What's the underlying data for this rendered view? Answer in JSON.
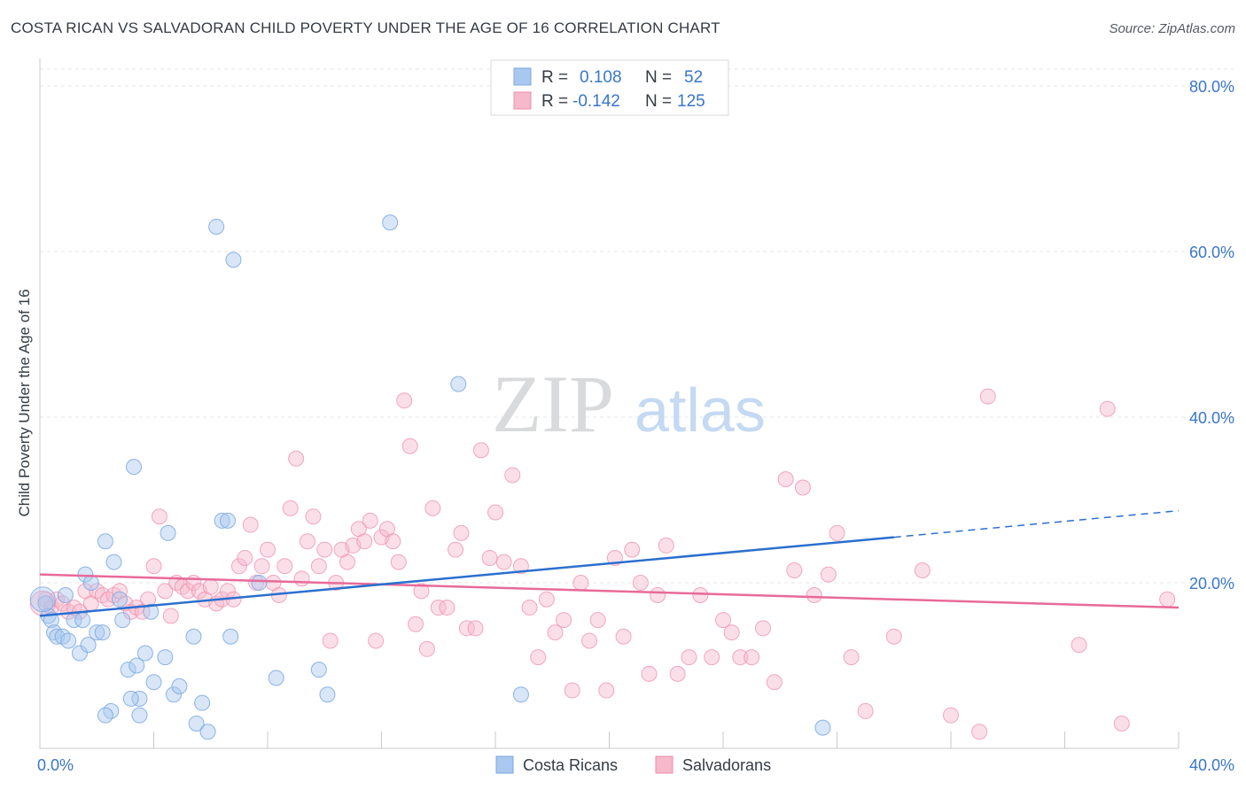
{
  "header": {
    "title": "COSTA RICAN VS SALVADORAN CHILD POVERTY UNDER THE AGE OF 16 CORRELATION CHART",
    "source": "Source: ZipAtlas.com"
  },
  "watermark": {
    "part1": "ZIP",
    "part2": "atlas"
  },
  "legend": {
    "rows": [
      {
        "r_label": "R =",
        "r_value": "0.108",
        "n_label": "N =",
        "n_value": "52",
        "color": "#a9c8f0"
      },
      {
        "r_label": "R =",
        "r_value": "-0.142",
        "n_label": "N =",
        "n_value": "125",
        "color": "#f6b8cb"
      }
    ]
  },
  "bottom_legend": [
    {
      "label": "Costa Ricans",
      "color": "#a9c8f0"
    },
    {
      "label": "Salvadorans",
      "color": "#f6b8cb"
    }
  ],
  "colors": {
    "blue_fill": "#a9c8f0",
    "blue_stroke": "#7aa8e0",
    "blue_line": "#2b6fcf",
    "pink_fill": "#f6b8cb",
    "pink_stroke": "#ee8eab",
    "pink_line": "#e86a99",
    "grid": "#e2e4e8",
    "axis_text": "#3a76c9"
  },
  "chart_data": {
    "type": "scatter",
    "title": "COSTA RICAN VS SALVADORAN CHILD POVERTY UNDER THE AGE OF 16 CORRELATION CHART",
    "xlabel": "",
    "ylabel": "Child Poverty Under the Age of 16",
    "xlim": [
      0,
      40
    ],
    "ylim": [
      0,
      80
    ],
    "x_tick_labels": [
      "0.0%",
      "40.0%"
    ],
    "y_tick_labels": [
      "20.0%",
      "40.0%",
      "60.0%",
      "80.0%"
    ],
    "y_ticks": [
      20,
      40,
      60,
      80
    ],
    "grid": true,
    "legend_position": "top-center",
    "series": [
      {
        "name": "Costa Ricans",
        "R": 0.108,
        "N": 52,
        "trend": {
          "x0": 0,
          "y0": 16.0,
          "x1": 30,
          "y1": 25.5,
          "dashed_to_x": 40,
          "dashed_to_y": 28.7
        },
        "points": [
          [
            0.2,
            17.5
          ],
          [
            0.3,
            16
          ],
          [
            0.4,
            15.5
          ],
          [
            0.5,
            14
          ],
          [
            0.6,
            13.5
          ],
          [
            0.8,
            13.5
          ],
          [
            0.9,
            18.5
          ],
          [
            1.0,
            13
          ],
          [
            1.2,
            15.5
          ],
          [
            1.4,
            11.5
          ],
          [
            1.5,
            15.5
          ],
          [
            1.6,
            21
          ],
          [
            1.7,
            12.5
          ],
          [
            1.8,
            20
          ],
          [
            2.0,
            14
          ],
          [
            2.2,
            14
          ],
          [
            2.3,
            25
          ],
          [
            2.6,
            22.5
          ],
          [
            2.8,
            18
          ],
          [
            2.9,
            15.5
          ],
          [
            3.1,
            9.5
          ],
          [
            3.3,
            34
          ],
          [
            3.4,
            10
          ],
          [
            3.5,
            4
          ],
          [
            3.7,
            11.5
          ],
          [
            3.9,
            16.5
          ],
          [
            4.0,
            8
          ],
          [
            4.4,
            11
          ],
          [
            4.5,
            26
          ],
          [
            4.7,
            6.5
          ],
          [
            4.9,
            7.5
          ],
          [
            5.4,
            13.5
          ],
          [
            5.5,
            3
          ],
          [
            5.7,
            5.5
          ],
          [
            5.9,
            2
          ],
          [
            6.2,
            63
          ],
          [
            6.4,
            27.5
          ],
          [
            6.6,
            27.5
          ],
          [
            6.7,
            13.5
          ],
          [
            6.8,
            59
          ],
          [
            7.7,
            20
          ],
          [
            8.3,
            8.5
          ],
          [
            9.8,
            9.5
          ],
          [
            10.1,
            6.5
          ],
          [
            12.3,
            63.5
          ],
          [
            14.7,
            44
          ],
          [
            16.9,
            6.5
          ],
          [
            27.5,
            2.5
          ],
          [
            2.5,
            4.5
          ],
          [
            2.3,
            4
          ],
          [
            3.5,
            6
          ],
          [
            3.2,
            6
          ]
        ]
      },
      {
        "name": "Salvadorans",
        "R": -0.142,
        "N": 125,
        "trend": {
          "x0": 0,
          "y0": 21.0,
          "x1": 40,
          "y1": 17.0
        },
        "points": [
          [
            0.2,
            18
          ],
          [
            0.4,
            17
          ],
          [
            0.6,
            18
          ],
          [
            0.8,
            17.5
          ],
          [
            1.0,
            16.5
          ],
          [
            1.2,
            17
          ],
          [
            1.4,
            16.5
          ],
          [
            1.6,
            19
          ],
          [
            1.8,
            17.5
          ],
          [
            2.0,
            19
          ],
          [
            2.2,
            18.5
          ],
          [
            2.4,
            18
          ],
          [
            2.6,
            18.5
          ],
          [
            2.8,
            19
          ],
          [
            3.0,
            17.5
          ],
          [
            3.2,
            16.5
          ],
          [
            3.4,
            17
          ],
          [
            3.6,
            16.5
          ],
          [
            3.8,
            18
          ],
          [
            4.0,
            22
          ],
          [
            4.2,
            28
          ],
          [
            4.4,
            19
          ],
          [
            4.6,
            16
          ],
          [
            4.8,
            20
          ],
          [
            5.0,
            19.5
          ],
          [
            5.2,
            19
          ],
          [
            5.4,
            20
          ],
          [
            5.6,
            19
          ],
          [
            5.8,
            18
          ],
          [
            6.0,
            19.5
          ],
          [
            6.2,
            17.5
          ],
          [
            6.4,
            18
          ],
          [
            6.6,
            19
          ],
          [
            6.8,
            18
          ],
          [
            7.0,
            22
          ],
          [
            7.2,
            23
          ],
          [
            7.4,
            27
          ],
          [
            7.6,
            20
          ],
          [
            7.8,
            22
          ],
          [
            8.0,
            24
          ],
          [
            8.2,
            20
          ],
          [
            8.4,
            18.5
          ],
          [
            8.6,
            22
          ],
          [
            8.8,
            29
          ],
          [
            9.0,
            35
          ],
          [
            9.2,
            20.5
          ],
          [
            9.4,
            25
          ],
          [
            9.6,
            28
          ],
          [
            9.8,
            22
          ],
          [
            10.0,
            24
          ],
          [
            10.2,
            13
          ],
          [
            10.4,
            20
          ],
          [
            10.6,
            24
          ],
          [
            10.8,
            22.5
          ],
          [
            11.0,
            24.5
          ],
          [
            11.2,
            26.5
          ],
          [
            11.4,
            25
          ],
          [
            11.6,
            27.5
          ],
          [
            11.8,
            13
          ],
          [
            12.0,
            25.5
          ],
          [
            12.2,
            26.5
          ],
          [
            12.4,
            25
          ],
          [
            12.6,
            22.5
          ],
          [
            12.8,
            42
          ],
          [
            13.0,
            36.5
          ],
          [
            13.2,
            15
          ],
          [
            13.4,
            19
          ],
          [
            13.6,
            12
          ],
          [
            13.8,
            29
          ],
          [
            14.0,
            17
          ],
          [
            14.3,
            17
          ],
          [
            14.6,
            24
          ],
          [
            14.8,
            26
          ],
          [
            15.0,
            14.5
          ],
          [
            15.3,
            14.5
          ],
          [
            15.5,
            36
          ],
          [
            15.8,
            23
          ],
          [
            16.0,
            28.5
          ],
          [
            16.3,
            22.5
          ],
          [
            16.6,
            33
          ],
          [
            16.9,
            22
          ],
          [
            17.2,
            17
          ],
          [
            17.5,
            11
          ],
          [
            17.8,
            18
          ],
          [
            18.1,
            14
          ],
          [
            18.4,
            15.5
          ],
          [
            18.7,
            7
          ],
          [
            19.0,
            20
          ],
          [
            19.3,
            13
          ],
          [
            19.6,
            15.5
          ],
          [
            19.9,
            7
          ],
          [
            20.2,
            23
          ],
          [
            20.5,
            13.5
          ],
          [
            20.8,
            24
          ],
          [
            21.1,
            20
          ],
          [
            21.4,
            9
          ],
          [
            21.7,
            18.5
          ],
          [
            22.0,
            24.5
          ],
          [
            22.4,
            9
          ],
          [
            22.8,
            11
          ],
          [
            23.2,
            18.5
          ],
          [
            23.6,
            11
          ],
          [
            24.0,
            15.5
          ],
          [
            24.3,
            14
          ],
          [
            24.6,
            11
          ],
          [
            25.0,
            11
          ],
          [
            25.4,
            14.5
          ],
          [
            25.8,
            8
          ],
          [
            26.2,
            32.5
          ],
          [
            26.5,
            21.5
          ],
          [
            26.8,
            31.5
          ],
          [
            27.2,
            18.5
          ],
          [
            27.7,
            21
          ],
          [
            28.0,
            26
          ],
          [
            28.5,
            11
          ],
          [
            29.0,
            4.5
          ],
          [
            30.0,
            13.5
          ],
          [
            31.0,
            21.5
          ],
          [
            32.0,
            4
          ],
          [
            33.0,
            2
          ],
          [
            33.3,
            42.5
          ],
          [
            36.5,
            12.5
          ],
          [
            37.5,
            41
          ],
          [
            38.0,
            3
          ],
          [
            39.6,
            18
          ]
        ]
      }
    ]
  }
}
